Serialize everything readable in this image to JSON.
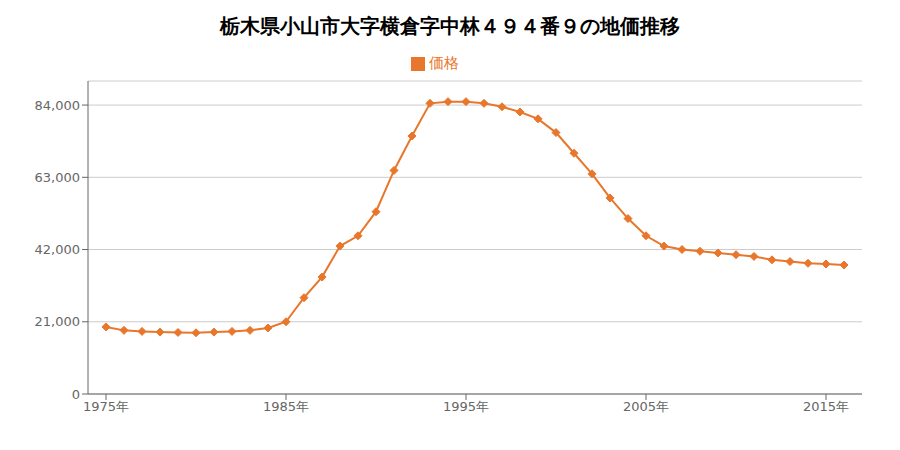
{
  "chart_data": {
    "type": "line",
    "title": "栃木県小山市大字横倉字中林４９４番９の地価推移",
    "x": [
      1975,
      1976,
      1977,
      1978,
      1979,
      1980,
      1981,
      1982,
      1983,
      1984,
      1985,
      1986,
      1987,
      1988,
      1989,
      1990,
      1991,
      1992,
      1993,
      1994,
      1995,
      1996,
      1997,
      1998,
      1999,
      2000,
      2001,
      2002,
      2003,
      2004,
      2005,
      2006,
      2007,
      2008,
      2009,
      2010,
      2011,
      2012,
      2013,
      2014,
      2015,
      2016
    ],
    "series": [
      {
        "name": "価格",
        "color": "#e8762b",
        "marker": "diamond",
        "values": [
          19500,
          18500,
          18200,
          18000,
          17900,
          17800,
          18000,
          18200,
          18500,
          19200,
          21000,
          28000,
          34000,
          43000,
          46000,
          53000,
          65000,
          75000,
          84500,
          85000,
          85000,
          84500,
          83500,
          82000,
          80000,
          76000,
          70000,
          64000,
          57000,
          51000,
          46000,
          43000,
          42000,
          41500,
          41000,
          40500,
          40000,
          39000,
          38500,
          38000,
          37800,
          37500
        ]
      }
    ],
    "xlim": [
      1974,
      2017
    ],
    "xticks": [
      {
        "value": 1975,
        "label": "1975年"
      },
      {
        "value": 1985,
        "label": "1985年"
      },
      {
        "value": 1995,
        "label": "1995年"
      },
      {
        "value": 2005,
        "label": "2005年"
      },
      {
        "value": 2015,
        "label": "2015年"
      }
    ],
    "ylim": [
      0,
      91000
    ],
    "yticks": [
      0,
      {
        "value": 21000,
        "label": "21,000"
      },
      {
        "value": 42000,
        "label": "42,000"
      },
      {
        "value": 63000,
        "label": "63,000"
      },
      {
        "value": 84000,
        "label": "84,000"
      }
    ],
    "grid": "y",
    "legend": "top"
  }
}
